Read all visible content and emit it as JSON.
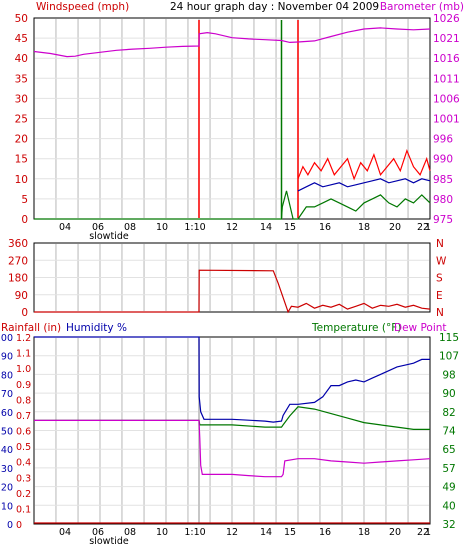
{
  "header": {
    "left_label": "Windspeed (mph)",
    "title": "24 hour graph day : November 04 2009",
    "right_label": "Barometer (mb)"
  },
  "colors": {
    "wind": "#cc0000",
    "gust": "#ff0000",
    "avg": "#0000aa",
    "baro": "#cc00cc",
    "hum": "#0000aa",
    "temp": "#007700",
    "dew": "#cc00cc",
    "rain": "#cc0000",
    "grid": "#cccccc",
    "marker_red": "#cc0000",
    "marker_green": "#007700"
  },
  "chart_data": [
    {
      "id": "wind",
      "type": "line",
      "title": "24 hour graph day : November 04 2009",
      "ylabel_left": "Windspeed (mph)",
      "ylabel_right": "Barometer (mb)",
      "y_ticks_left": [
        "50",
        "45",
        "40",
        "35",
        "30",
        "25",
        "20",
        "15",
        "10",
        "5",
        "0"
      ],
      "y_ticks_right": [
        "1026",
        "1021",
        "1016",
        "1011",
        "1006",
        "1001",
        "996",
        "990",
        "985",
        "980",
        "975"
      ],
      "ylim_left": [
        0,
        50
      ],
      "ylim_right": [
        975,
        1026
      ],
      "x_ticks": [
        "04",
        "06",
        "08",
        "10",
        "1:10",
        "12",
        "14",
        "15",
        "16",
        "18",
        "20",
        "22",
        "1"
      ],
      "x_sublabel": "slowtide",
      "series": [
        {
          "name": "Barometer (mb)",
          "axis": "right",
          "x": [
            0,
            1,
            2,
            2.5,
            3,
            4,
            5,
            6,
            7,
            8,
            9,
            10,
            10.01,
            10.5,
            11,
            12,
            13,
            14,
            15,
            15.5,
            16,
            17,
            18,
            19,
            20,
            21,
            22,
            23,
            24
          ],
          "y": [
            1017.5,
            1017,
            1016.2,
            1016.3,
            1016.8,
            1017.3,
            1017.8,
            1018.1,
            1018.3,
            1018.6,
            1018.8,
            1018.9,
            1022,
            1022.3,
            1022,
            1021,
            1020.7,
            1020.5,
            1020.3,
            1019.8,
            1019.9,
            1020.2,
            1021.3,
            1022.4,
            1023.2,
            1023.5,
            1023.2,
            1023,
            1023.2
          ]
        },
        {
          "name": "Wind speed (mph)",
          "axis": "left",
          "x": [
            0,
            14.9,
            15.0,
            15.05,
            15.3,
            15.7,
            16.0,
            16.5,
            17,
            17.5,
            18,
            18.5,
            19,
            19.5,
            20,
            20.5,
            21,
            21.5,
            22,
            22.5,
            23,
            23.5,
            24
          ],
          "y": [
            0,
            0,
            0,
            3,
            7,
            0,
            0,
            3,
            3,
            4,
            5,
            4,
            3,
            2,
            4,
            5,
            6,
            4,
            3,
            5,
            4,
            6,
            4
          ],
          "color": "green"
        },
        {
          "name": "Wind gust (mph)",
          "axis": "left",
          "x": [
            16,
            16.3,
            16.6,
            17,
            17.4,
            17.8,
            18.2,
            18.6,
            19,
            19.4,
            19.8,
            20.2,
            20.6,
            21,
            21.4,
            21.8,
            22.2,
            22.6,
            23,
            23.4,
            23.8,
            24
          ],
          "y": [
            10,
            13,
            11,
            14,
            12,
            15,
            11,
            13,
            15,
            10,
            14,
            12,
            16,
            11,
            13,
            15,
            12,
            17,
            13,
            11,
            15,
            12
          ],
          "color": "red"
        },
        {
          "name": "Average wind (mph)",
          "axis": "left",
          "x": [
            16,
            16.5,
            17,
            17.5,
            18,
            18.5,
            19,
            19.5,
            20,
            20.5,
            21,
            21.5,
            22,
            22.5,
            23,
            23.5,
            24
          ],
          "y": [
            7,
            8,
            9,
            8,
            8.5,
            9,
            8,
            8.5,
            9,
            9.5,
            10,
            9,
            9.5,
            10,
            9,
            10,
            9.5
          ],
          "color": "blue"
        }
      ],
      "markers": [
        {
          "x": 10.0,
          "color": "red"
        },
        {
          "x": 15.0,
          "color": "green"
        },
        {
          "x": 16.0,
          "color": "red"
        }
      ]
    },
    {
      "id": "direction",
      "type": "line",
      "y_ticks_left": [
        "360",
        "270",
        "180",
        "90",
        "0"
      ],
      "y_labels_right": [
        "N",
        "W",
        "S",
        "E",
        "N"
      ],
      "ylim": [
        0,
        360
      ],
      "series": [
        {
          "name": "Wind direction (deg)",
          "x": [
            0,
            10.0,
            10.01,
            14.5,
            14.8,
            15.4,
            15.6,
            16,
            16.5,
            17,
            17.5,
            18,
            18.5,
            19,
            19.5,
            20,
            20.5,
            21,
            21.5,
            22,
            22.5,
            23,
            23.5,
            24
          ],
          "y": [
            0,
            0,
            218,
            215,
            150,
            0,
            30,
            25,
            45,
            20,
            35,
            25,
            40,
            15,
            30,
            45,
            20,
            35,
            30,
            40,
            25,
            35,
            20,
            15
          ]
        }
      ]
    },
    {
      "id": "humidity_temp",
      "type": "line",
      "left_label_1": "Rainfall (in)",
      "left_label_2": "Humidity %",
      "right_label_1": "Temperature (°F)",
      "right_label_2": "Dew Point",
      "y_ticks_humidity": [
        "100",
        "90",
        "80",
        "70",
        "60",
        "50",
        "40",
        "30",
        "20",
        "10",
        "0"
      ],
      "y_ticks_rain": [
        "1.2",
        "1.1",
        "1.0",
        "0.9",
        "0.8",
        "0.7",
        "0.6",
        "0.5",
        "0.4",
        "0.3",
        "0.2",
        "0.1",
        "0"
      ],
      "y_ticks_temp": [
        "115",
        "107",
        "98",
        "90",
        "82",
        "74",
        "65",
        "57",
        "49",
        "40",
        "32"
      ],
      "ylim_humidity": [
        0,
        100
      ],
      "ylim_temp": [
        32,
        115
      ],
      "x_ticks": [
        "04",
        "06",
        "08",
        "10",
        "1:10",
        "12",
        "14",
        "15",
        "16",
        "18",
        "20",
        "22",
        "1"
      ],
      "x_sublabel": "slowtide",
      "series": [
        {
          "name": "Humidity %",
          "axis": "humidity",
          "x": [
            0,
            10.0,
            10.01,
            10.1,
            10.3,
            11,
            12,
            13,
            14,
            14.5,
            15,
            15.1,
            15.5,
            16,
            17,
            17.5,
            18,
            18.5,
            19,
            19.5,
            20,
            20.5,
            21,
            21.5,
            22,
            22.5,
            23,
            23.5,
            24
          ],
          "y": [
            100,
            100,
            68,
            60,
            56,
            56,
            56,
            55.5,
            55,
            54.5,
            55,
            58,
            64,
            64,
            65,
            68,
            74,
            74,
            76,
            77,
            76,
            78,
            80,
            82,
            84,
            85,
            86,
            88,
            88
          ]
        },
        {
          "name": "Temperature (°F)",
          "axis": "temp",
          "x": [
            0,
            10,
            10.05,
            12,
            14,
            15,
            15.1,
            15.5,
            16,
            17,
            18,
            19,
            20,
            21,
            22,
            23,
            24
          ],
          "y": [
            78,
            78,
            76,
            76,
            75,
            75,
            76,
            80,
            84,
            83,
            81,
            79,
            77,
            76,
            75,
            74,
            74
          ]
        },
        {
          "name": "Dew Point",
          "axis": "temp",
          "x": [
            0,
            10,
            10.05,
            10.1,
            10.2,
            11,
            12,
            13,
            14,
            14.5,
            15,
            15.1,
            15.2,
            16,
            17,
            18,
            19,
            20,
            21,
            22,
            23,
            24
          ],
          "y": [
            78,
            78,
            70,
            58,
            54,
            54,
            54,
            53.5,
            53,
            53,
            53,
            54,
            60,
            61,
            61,
            60,
            59.5,
            59,
            59.5,
            60,
            60.5,
            61
          ]
        },
        {
          "name": "Rainfall (in)",
          "axis": "rain",
          "x": [
            0,
            24
          ],
          "y": [
            0,
            0
          ]
        }
      ],
      "markers": [
        {
          "x": 10.0,
          "color": "grey"
        }
      ]
    }
  ]
}
